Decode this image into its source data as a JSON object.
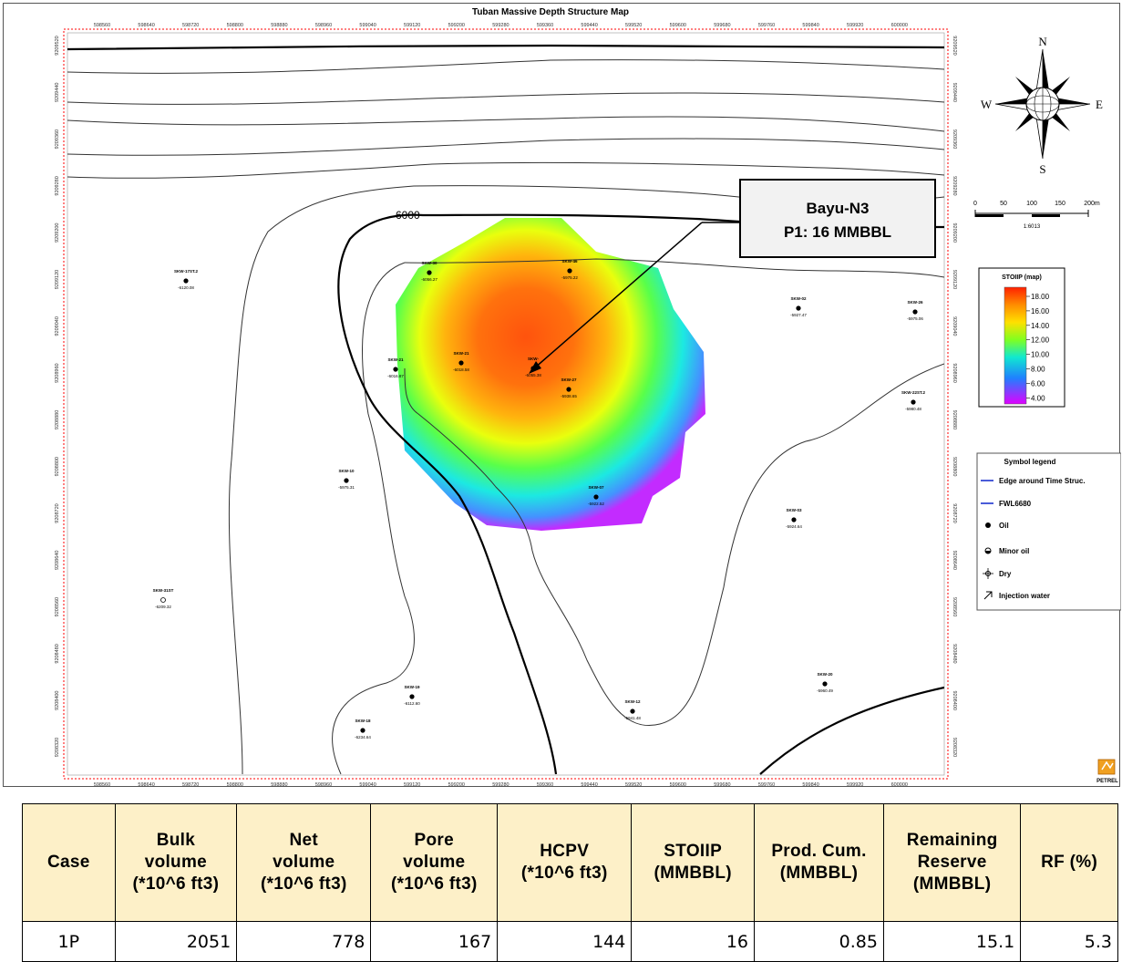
{
  "map": {
    "title": "Tuban Massive Depth Structure Map",
    "x_ticks": [
      "598560",
      "598640",
      "598720",
      "598800",
      "598880",
      "598960",
      "599040",
      "599120",
      "599200",
      "599280",
      "599360",
      "599440",
      "599520",
      "599600",
      "599680",
      "599760",
      "599840",
      "599920",
      "600000"
    ],
    "y_ticks": [
      "9209520",
      "9209440",
      "9209360",
      "9209280",
      "9209200",
      "9209120",
      "9209040",
      "9208960",
      "9208880",
      "9208800",
      "9208720",
      "9208640",
      "9208560",
      "9208480",
      "9208400",
      "9208320"
    ],
    "contour_label": "6000",
    "callout": {
      "line1": "Bayu-N3",
      "line2": "P1: 16 MMBBL"
    },
    "compass": {
      "n": "N",
      "s": "S",
      "e": "E",
      "w": "W"
    },
    "scale": {
      "labels": [
        "0",
        "50",
        "100",
        "150",
        "200m"
      ],
      "ratio": "1:6013"
    },
    "colorbar": {
      "title": "STOIIP (map)",
      "labels": [
        "18.00",
        "16.00",
        "14.00",
        "12.00",
        "10.00",
        "8.00",
        "6.00",
        "4.00"
      ]
    },
    "legend": {
      "title": "Symbol legend",
      "items": [
        "Edge around Time Struc.",
        "FWL6680",
        "Oil",
        "Minor oil",
        "Dry",
        "Injection water"
      ]
    },
    "wells": [
      {
        "name": "SKW-17ST.2",
        "depth": "-6120.08"
      },
      {
        "name": "SKW-30",
        "depth": "-6056.27"
      },
      {
        "name": "SKW-46",
        "depth": "-5975.22"
      },
      {
        "name": "SKW-02",
        "depth": "-5927.47"
      },
      {
        "name": "SKW-26",
        "depth": "-5975.06"
      },
      {
        "name": "SKW-21",
        "depth": "-6016.87"
      },
      {
        "name": "SKW-21",
        "depth": "-6018.58"
      },
      {
        "name": "SKW-",
        "depth": "-6055.38"
      },
      {
        "name": "SKW-27",
        "depth": "-5938.65"
      },
      {
        "name": "SKW-22ST.2",
        "depth": "-5980.48"
      },
      {
        "name": "SKW-10",
        "depth": "-5975.31"
      },
      {
        "name": "SKW-07",
        "depth": "-5922.52"
      },
      {
        "name": "SKW-03",
        "depth": "-5924.64"
      },
      {
        "name": "SKW-31ST",
        "depth": "-6209.32"
      },
      {
        "name": "SKW-20",
        "depth": "-5960.49"
      },
      {
        "name": "SKW-19",
        "depth": "-6112.60"
      },
      {
        "name": "SKW-12",
        "depth": "-5941.48"
      },
      {
        "name": "SKW-18",
        "depth": "-6234.64"
      }
    ],
    "logo": "PETREL"
  },
  "table": {
    "headers": [
      [
        "Case"
      ],
      [
        "Bulk",
        "volume",
        "(*10^6 ft3)"
      ],
      [
        "Net",
        "volume",
        "(*10^6 ft3)"
      ],
      [
        "Pore",
        "volume",
        "(*10^6 ft3)"
      ],
      [
        "HCPV",
        "(*10^6 ft3)"
      ],
      [
        "STOIIP",
        "(MMBBL)"
      ],
      [
        "Prod. Cum.",
        "(MMBBL)"
      ],
      [
        "Remaining",
        "Reserve",
        "(MMBBL)"
      ],
      [
        "RF (%)"
      ]
    ],
    "row": [
      "1P",
      "2051",
      "778",
      "167",
      "144",
      "16",
      "0.85",
      "15.1",
      "5.3"
    ]
  },
  "colors": {
    "table_header_bg": "#fdf0c8",
    "map_border": "#ff0000",
    "legend_line": "#4a5cd8"
  }
}
